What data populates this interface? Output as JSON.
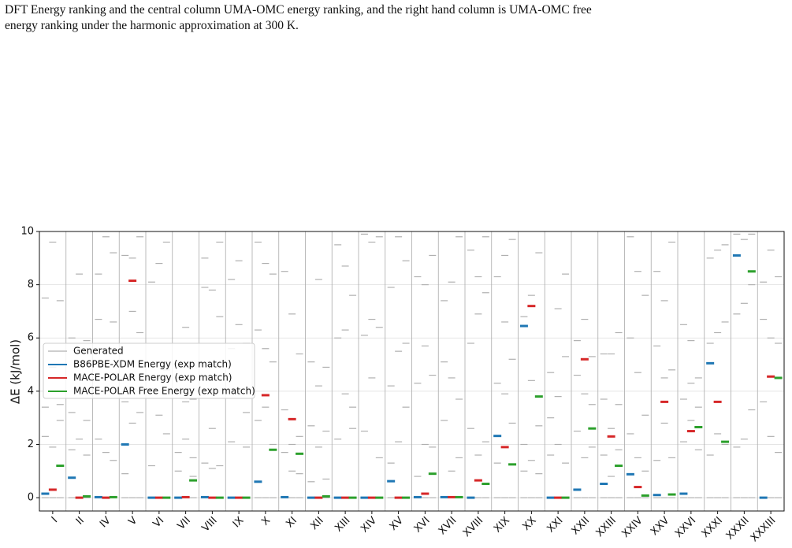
{
  "caption": [
    "DFT Energy ranking and the central column UMA-OMC energy ranking, and the right hand column is UMA-OMC free",
    "energy ranking under the harmonic approximation at 300 K."
  ],
  "chart_data": {
    "type": "energy-ranking",
    "ylabel": "ΔE (kJ/mol)",
    "categories": [
      "I",
      "II",
      "IV",
      "V",
      "VI",
      "VII",
      "VIII",
      "IX",
      "X",
      "XI",
      "XII",
      "XIII",
      "XIV",
      "XV",
      "XVI",
      "XVII",
      "XVIII",
      "XIX",
      "XX",
      "XXI",
      "XXII",
      "XXIII",
      "XXIV",
      "XXV",
      "XXVI",
      "XXXI",
      "XXXII",
      "XXXIII"
    ],
    "ylim": [
      -0.5,
      10
    ],
    "yticks": [
      0,
      2,
      4,
      6,
      8,
      10
    ],
    "grid": true,
    "legend": "upper left",
    "series": [
      {
        "name": "Generated",
        "color": "#b0b0b0",
        "values": [
          [
            [
              0,
              2.3,
              3.4,
              7.5
            ],
            [
              0,
              1.9,
              4.9,
              9.6
            ],
            [
              0,
              2.9,
              3.5,
              7.4
            ]
          ],
          [
            [
              0,
              1.8,
              3.2,
              6.0
            ],
            [
              0,
              2.2,
              4.6,
              8.4
            ],
            [
              0,
              1.6,
              2.9,
              5.9
            ]
          ],
          [
            [
              0,
              2.2,
              6.7,
              8.4
            ],
            [
              0,
              1.7,
              5.5,
              9.8
            ],
            [
              0,
              1.4,
              6.6,
              9.2
            ]
          ],
          [
            [
              0,
              0.9,
              3.6,
              9.1
            ],
            [
              0,
              2.8,
              7.0,
              9.0
            ],
            [
              0,
              3.2,
              6.2,
              9.8
            ]
          ],
          [
            [
              0,
              1.2,
              4.1,
              8.1
            ],
            [
              0,
              3.1,
              4.5,
              8.8
            ],
            [
              0,
              2.4,
              4.8,
              9.6
            ]
          ],
          [
            [
              0,
              1.0,
              1.7,
              4.5
            ],
            [
              0,
              2.2,
              3.6,
              6.4
            ],
            [
              0,
              0.8,
              1.5,
              3.7
            ]
          ],
          [
            [
              0,
              1.3,
              7.9,
              9.0
            ],
            [
              0,
              1.1,
              2.6,
              7.8
            ],
            [
              0,
              1.2,
              6.8,
              9.6
            ]
          ],
          [
            [
              0,
              2.1,
              5.6,
              8.2
            ],
            [
              0,
              4.0,
              6.5,
              8.9
            ],
            [
              0,
              1.9,
              3.2,
              5.8
            ]
          ],
          [
            [
              0,
              2.9,
              6.3,
              9.6
            ],
            [
              0,
              3.4,
              5.6,
              8.8
            ],
            [
              0,
              2.0,
              5.1,
              8.4
            ]
          ],
          [
            [
              0,
              1.7,
              3.3,
              8.5
            ],
            [
              0,
              1.0,
              2.0,
              6.9
            ],
            [
              0,
              0.9,
              2.3,
              5.4
            ]
          ],
          [
            [
              0,
              0.6,
              2.7,
              5.1
            ],
            [
              0,
              1.9,
              4.2,
              8.2
            ],
            [
              0,
              0.7,
              2.5,
              4.9
            ]
          ],
          [
            [
              0,
              2.2,
              6.0,
              9.5
            ],
            [
              0,
              3.9,
              6.3,
              8.7
            ],
            [
              0,
              2.6,
              3.4,
              7.6
            ]
          ],
          [
            [
              0,
              2.5,
              6.1,
              9.9
            ],
            [
              0,
              4.5,
              6.7,
              9.6
            ],
            [
              0,
              1.5,
              6.4,
              9.8
            ]
          ],
          [
            [
              0,
              1.3,
              4.2,
              7.9
            ],
            [
              0,
              2.1,
              5.5,
              9.8
            ],
            [
              0,
              3.4,
              5.8,
              8.9
            ]
          ],
          [
            [
              0,
              0.8,
              4.3,
              8.3
            ],
            [
              0,
              2.0,
              5.7,
              8.0
            ],
            [
              0,
              1.9,
              4.6,
              9.1
            ]
          ],
          [
            [
              0,
              2.9,
              5.1,
              7.4
            ],
            [
              0,
              1.0,
              4.5,
              8.1
            ],
            [
              0,
              1.5,
              3.7,
              9.8
            ]
          ],
          [
            [
              0,
              2.6,
              5.8,
              9.3
            ],
            [
              0,
              1.6,
              6.9,
              8.3
            ],
            [
              0,
              2.1,
              7.7,
              9.8
            ]
          ],
          [
            [
              0,
              1.3,
              4.3,
              8.3
            ],
            [
              0,
              3.9,
              6.6,
              9.1
            ],
            [
              0,
              2.8,
              5.2,
              9.7
            ]
          ],
          [
            [
              0,
              1.0,
              2.0,
              6.8
            ],
            [
              0,
              1.4,
              4.4,
              7.6
            ],
            [
              0,
              0.9,
              2.7,
              9.2
            ]
          ],
          [
            [
              0,
              1.6,
              3.0,
              4.7
            ],
            [
              0,
              2.0,
              3.8,
              7.1
            ],
            [
              0,
              1.3,
              5.3,
              8.4
            ]
          ],
          [
            [
              0,
              2.5,
              4.6,
              5.9
            ],
            [
              0,
              1.5,
              3.9,
              6.7
            ],
            [
              0,
              1.9,
              3.5,
              5.3
            ]
          ],
          [
            [
              0,
              1.6,
              3.7,
              5.4
            ],
            [
              0,
              0.8,
              2.6,
              5.4
            ],
            [
              0,
              1.8,
              3.5,
              6.2
            ]
          ],
          [
            [
              0,
              2.4,
              6.0,
              9.8
            ],
            [
              0,
              1.5,
              4.7,
              8.5
            ],
            [
              0,
              1.0,
              3.1,
              7.6
            ]
          ],
          [
            [
              0,
              1.4,
              5.7,
              8.5
            ],
            [
              0,
              2.8,
              4.5,
              7.4
            ],
            [
              0,
              1.5,
              4.8,
              9.6
            ]
          ],
          [
            [
              0,
              2.1,
              3.7,
              6.5
            ],
            [
              0,
              2.9,
              4.3,
              5.9
            ],
            [
              0,
              1.8,
              3.4,
              4.5
            ]
          ],
          [
            [
              0,
              1.6,
              5.8,
              9.0
            ],
            [
              0,
              2.4,
              6.2,
              9.3
            ],
            [
              0,
              2.0,
              6.6,
              9.5
            ]
          ],
          [
            [
              0,
              1.9,
              6.9,
              9.9
            ],
            [
              0,
              2.2,
              7.3,
              9.7
            ],
            [
              0,
              3.3,
              8.0,
              9.9
            ]
          ],
          [
            [
              0,
              3.6,
              6.7,
              8.1
            ],
            [
              0,
              2.3,
              6.0,
              9.3
            ],
            [
              0,
              1.7,
              5.8,
              8.3
            ]
          ]
        ]
      },
      {
        "name": "B86PBE-XDM Energy (exp match)",
        "color": "#1f77b4",
        "values": [
          0.15,
          0.75,
          0.02,
          2.0,
          0,
          0,
          0.02,
          0,
          0.6,
          0.02,
          0,
          0,
          0,
          0.62,
          0.02,
          0.02,
          0,
          2.32,
          6.45,
          0,
          0.3,
          0.52,
          0.88,
          0.1,
          0.15,
          5.05,
          9.1,
          0
        ]
      },
      {
        "name": "MACE-POLAR Energy (exp match)",
        "color": "#d62728",
        "values": [
          0.3,
          0,
          0,
          8.15,
          0,
          0.02,
          0,
          0,
          3.85,
          2.95,
          0,
          0,
          0,
          0,
          0.15,
          0.02,
          0.65,
          1.9,
          7.2,
          0,
          5.2,
          2.3,
          0.4,
          3.6,
          2.5,
          3.6,
          null,
          4.55
        ]
      },
      {
        "name": "MACE-POLAR Free Energy (exp match)",
        "color": "#2ca02c",
        "values": [
          1.2,
          0.05,
          0.02,
          null,
          0,
          0.65,
          0,
          0,
          1.8,
          1.65,
          0.05,
          0,
          0,
          0,
          0.9,
          0.02,
          0.52,
          1.25,
          3.8,
          0,
          2.6,
          1.2,
          0.08,
          0.12,
          2.65,
          2.1,
          8.5,
          4.5
        ]
      }
    ]
  }
}
